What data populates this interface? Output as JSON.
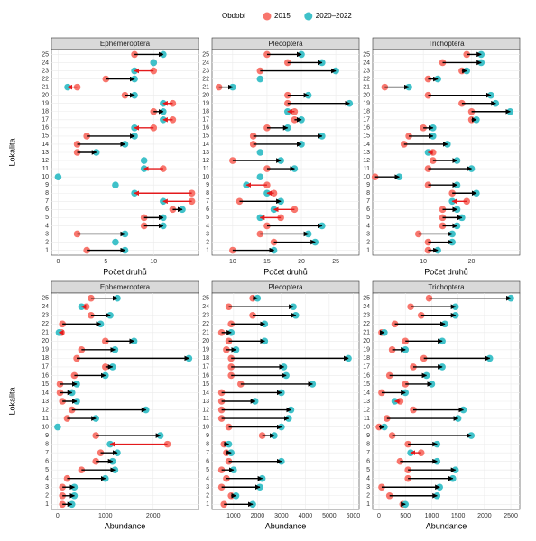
{
  "legend": {
    "title": "Období",
    "entries": [
      {
        "name": "2015",
        "color": "#f8766d"
      },
      {
        "name": "2020–2022",
        "color": "#3fc1c9"
      }
    ],
    "increase_color": "#000000",
    "decrease_color": "#e31a1c"
  },
  "chart_data": [
    {
      "type": "dumbbell",
      "title": "Ephemeroptera",
      "ylabel": "Lokalita",
      "xlabel": "Počet druhů",
      "categories": [
        "1",
        "2",
        "3",
        "4",
        "5",
        "6",
        "7",
        "8",
        "9",
        "10",
        "11",
        "12",
        "13",
        "14",
        "15",
        "16",
        "17",
        "18",
        "19",
        "20",
        "21",
        "22",
        "23",
        "24",
        "25"
      ],
      "series": [
        {
          "values": [
            3,
            null,
            2,
            9,
            9,
            12,
            14,
            14,
            null,
            null,
            11,
            null,
            2,
            2,
            3,
            10,
            12,
            10,
            12,
            7,
            2,
            5,
            10,
            10,
            8
          ]
        },
        {
          "values": [
            7,
            6,
            7,
            11,
            11,
            13,
            11,
            8,
            6,
            0,
            9,
            9,
            4,
            7,
            8,
            8,
            11,
            11,
            11,
            8,
            1,
            8,
            8,
            10,
            11
          ]
        }
      ],
      "xlim": [
        -0.7,
        14.7
      ],
      "xticks": [
        0,
        5,
        10
      ],
      "grid": true
    },
    {
      "type": "dumbbell",
      "title": "Plecoptera",
      "xlabel": "Počet druhů",
      "categories": [
        "1",
        "2",
        "3",
        "4",
        "5",
        "6",
        "7",
        "8",
        "9",
        "10",
        "11",
        "12",
        "13",
        "14",
        "15",
        "16",
        "17",
        "18",
        "19",
        "20",
        "21",
        "22",
        "23",
        "24",
        "25"
      ],
      "series": [
        {
          "values": [
            10,
            16,
            14,
            15,
            17,
            19,
            11,
            16,
            15,
            null,
            15,
            10,
            null,
            13,
            13,
            15,
            19,
            19,
            18,
            18,
            8,
            null,
            14,
            18,
            15
          ]
        },
        {
          "values": [
            16,
            22,
            21,
            23,
            14,
            16,
            17,
            15,
            12,
            14,
            19,
            17,
            14,
            20,
            23,
            18,
            20,
            18,
            27,
            21,
            10,
            14,
            25,
            23,
            20
          ]
        }
      ],
      "xlim": [
        7,
        28.4
      ],
      "xticks": [
        10,
        15,
        20,
        25
      ],
      "grid": true
    },
    {
      "type": "dumbbell",
      "title": "Trichoptera",
      "xlabel": "Počet druhů",
      "categories": [
        "1",
        "2",
        "3",
        "4",
        "5",
        "6",
        "7",
        "8",
        "9",
        "10",
        "11",
        "12",
        "13",
        "14",
        "15",
        "16",
        "17",
        "18",
        "19",
        "20",
        "21",
        "22",
        "23",
        "24",
        "25"
      ],
      "series": [
        {
          "values": [
            11,
            11,
            9,
            14,
            14,
            14,
            19,
            16,
            11,
            0,
            11,
            12,
            12,
            6,
            7,
            10,
            20,
            20,
            18,
            11,
            2,
            11,
            18,
            14,
            19
          ]
        },
        {
          "values": [
            13,
            16,
            16,
            17,
            18,
            17,
            16,
            21,
            17,
            5,
            20,
            17,
            11,
            15,
            12,
            12,
            21,
            28,
            25,
            24,
            7,
            13,
            19,
            22,
            22
          ]
        }
      ],
      "xlim": [
        -0.5,
        30
      ],
      "xticks": [
        10,
        20
      ],
      "grid": true
    },
    {
      "type": "dumbbell",
      "title": "Ephemeroptera",
      "ylabel": "Lokalita",
      "xlabel": "Abundance",
      "categories": [
        "1",
        "2",
        "3",
        "4",
        "5",
        "6",
        "7",
        "8",
        "9",
        "10",
        "11",
        "12",
        "13",
        "14",
        "15",
        "16",
        "17",
        "18",
        "19",
        "20",
        "21",
        "22",
        "23",
        "24",
        "25"
      ],
      "series": [
        {
          "values": [
            100,
            100,
            100,
            200,
            500,
            800,
            900,
            2300,
            800,
            null,
            200,
            300,
            100,
            50,
            50,
            350,
            1000,
            400,
            500,
            1000,
            80,
            100,
            700,
            600,
            700
          ]
        },
        {
          "values": [
            300,
            350,
            350,
            1000,
            1200,
            1150,
            1250,
            1100,
            2150,
            0,
            800,
            1850,
            400,
            300,
            400,
            1000,
            1150,
            2750,
            1200,
            1600,
            30,
            900,
            1100,
            500,
            1250
          ]
        }
      ],
      "xlim": [
        -130,
        2950
      ],
      "xticks": [
        0,
        1000,
        2000
      ],
      "grid": true
    },
    {
      "type": "dumbbell",
      "title": "Plecoptera",
      "xlabel": "Abundance",
      "categories": [
        "1",
        "2",
        "3",
        "4",
        "5",
        "6",
        "7",
        "8",
        "9",
        "10",
        "11",
        "12",
        "13",
        "14",
        "15",
        "16",
        "17",
        "18",
        "19",
        "20",
        "21",
        "22",
        "23",
        "24",
        "25"
      ],
      "series": [
        {
          "values": [
            600,
            900,
            500,
            700,
            500,
            800,
            700,
            600,
            2200,
            800,
            500,
            500,
            500,
            500,
            1300,
            900,
            900,
            900,
            700,
            800,
            500,
            900,
            1800,
            800,
            1800
          ]
        },
        {
          "values": [
            1800,
            1100,
            2100,
            2200,
            1000,
            3000,
            900,
            800,
            2700,
            3000,
            3300,
            3400,
            1900,
            3000,
            4300,
            3200,
            3100,
            5800,
            1100,
            2300,
            900,
            2300,
            3600,
            3500,
            2000
          ]
        }
      ],
      "xlim": [
        100,
        6250
      ],
      "xticks": [
        1000,
        2000,
        3000,
        4000,
        5000,
        6000
      ],
      "grid": true
    },
    {
      "type": "dumbbell",
      "title": "Trichoptera",
      "xlabel": "Abundance",
      "categories": [
        "1",
        "2",
        "3",
        "4",
        "5",
        "6",
        "7",
        "8",
        "9",
        "10",
        "11",
        "12",
        "13",
        "14",
        "15",
        "16",
        "17",
        "18",
        "19",
        "20",
        "21",
        "22",
        "23",
        "24",
        "25"
      ],
      "series": [
        {
          "values": [
            450,
            200,
            50,
            550,
            550,
            400,
            800,
            550,
            250,
            0,
            150,
            650,
            400,
            50,
            500,
            200,
            650,
            850,
            250,
            500,
            50,
            300,
            800,
            600,
            950
          ]
        },
        {
          "values": [
            500,
            1100,
            1150,
            1400,
            1450,
            1100,
            600,
            1100,
            1750,
            100,
            1500,
            1600,
            300,
            500,
            1000,
            900,
            1200,
            2100,
            500,
            1200,
            100,
            1250,
            1450,
            1450,
            2500
          ]
        }
      ],
      "xlim": [
        -120,
        2670
      ],
      "xticks": [
        0,
        500,
        1000,
        1500,
        2000,
        2500
      ],
      "grid": true
    }
  ]
}
